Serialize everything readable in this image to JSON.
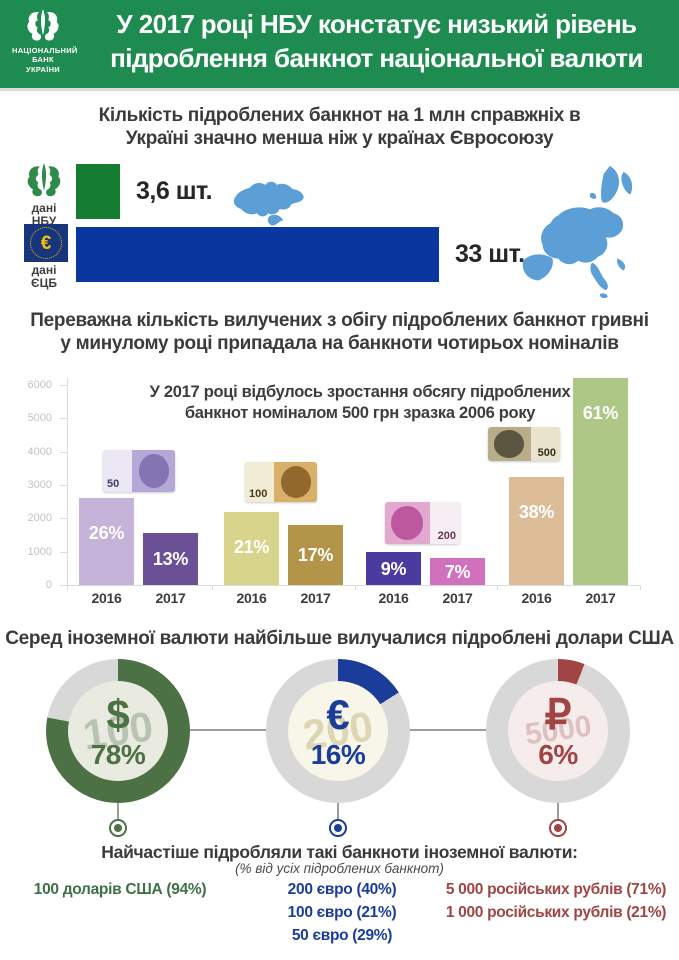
{
  "header": {
    "logo_lines": [
      "НАЦІОНАЛЬНИЙ",
      "БАНК",
      "УКРАЇНИ"
    ],
    "title_lines": [
      "У 2017 році НБУ констатує низький рівень",
      "підроблення банкнот національної валюти"
    ],
    "bg_color": "#1e8b50"
  },
  "chart_data": [
    {
      "type": "bar",
      "orientation": "horizontal",
      "title_lines": [
        "Кількість підроблених банкнот на 1 млн справжніх в",
        "Україні значно менша ніж у країнах Євросоюзу"
      ],
      "rows": [
        {
          "source_lines": [
            "дані",
            "НБУ"
          ],
          "region": "Україна",
          "value": 3.6,
          "value_label": "3,6 шт.",
          "bar_color": "#157e32",
          "map": "ukraine"
        },
        {
          "source_lines": [
            "дані",
            "ЄЦБ"
          ],
          "region": "Євросоюз",
          "value": 33,
          "value_label": "33 шт.",
          "bar_color": "#0a36a0",
          "map": "eu"
        }
      ],
      "map_color": "#5b9fd6",
      "ecb_symbol": "€"
    },
    {
      "type": "bar",
      "title_lines": [
        "Переважна кількість вилучених з обігу підроблених банкнот гривні",
        "у минулому році припадала на банкноти чотирьох номіналів"
      ],
      "annotation_lines": [
        "У 2017 році відбулось зростання обсягу підроблених",
        "банкнот номіналом 500 грн зразка 2006 року"
      ],
      "categories": [
        "2016",
        "2017"
      ],
      "yticks": [
        0,
        1000,
        2000,
        3000,
        4000,
        5000,
        6000
      ],
      "ylim": [
        0,
        6600
      ],
      "grid": false,
      "groups": [
        {
          "denomination": "50 грн",
          "bars": [
            {
              "year": "2016",
              "value": 2600,
              "percent": "26%",
              "color": "#c6b3da"
            },
            {
              "year": "2017",
              "value": 1550,
              "percent": "13%",
              "color": "#6b5096"
            }
          ],
          "note": {
            "label": "50",
            "light": "#ece7f5",
            "mid": "#b5a8d6",
            "dark": "#7e6fae",
            "num_color": "#403a68",
            "num_side": "left"
          }
        },
        {
          "denomination": "100 грн",
          "bars": [
            {
              "year": "2016",
              "value": 2200,
              "percent": "21%",
              "color": "#d9d48c"
            },
            {
              "year": "2017",
              "value": 1800,
              "percent": "17%",
              "color": "#b3954a"
            }
          ],
          "note": {
            "label": "100",
            "light": "#f2ecd6",
            "mid": "#d8b06a",
            "dark": "#8a6226",
            "num_color": "#4a3a18",
            "num_side": "left"
          }
        },
        {
          "denomination": "200 грн",
          "bars": [
            {
              "year": "2016",
              "value": 1000,
              "percent": "9%",
              "color": "#4b3ba0"
            },
            {
              "year": "2017",
              "value": 800,
              "percent": "7%",
              "color": "#d171bd"
            }
          ],
          "note": {
            "label": "200",
            "light": "#f7eef4",
            "mid": "#e3a8d0",
            "dark": "#b84f99",
            "num_color": "#5f3a55",
            "num_side": "right"
          }
        },
        {
          "denomination": "500 грн",
          "bars": [
            {
              "year": "2016",
              "value": 3250,
              "percent": "38%",
              "color": "#ddbd97"
            },
            {
              "year": "2017",
              "value": 6200,
              "percent": "61%",
              "color": "#aec787"
            }
          ],
          "note": {
            "label": "500",
            "light": "#e9e2cc",
            "mid": "#b7ad88",
            "dark": "#514d3a",
            "num_color": "#32301f",
            "num_side": "right"
          }
        }
      ]
    },
    {
      "type": "pie",
      "variant": "donut",
      "title": "Серед іноземної валюти найбільше вилучалися підроблені долари США",
      "items": [
        {
          "currency": "долари США",
          "symbol": "$",
          "percent": 78,
          "percent_label": "78%",
          "color": "#4c7144",
          "ring_rest_color": "#d8d8d8",
          "inner_bg": "#e9ebe0",
          "watermark": "100",
          "watermark_color": "rgba(100,120,95,0.35)"
        },
        {
          "currency": "євро",
          "symbol": "€",
          "percent": 16,
          "percent_label": "16%",
          "color": "#1a3d99",
          "ring_rest_color": "#d8d8d8",
          "inner_bg": "#f8f5e9",
          "watermark": "200",
          "watermark_color": "rgba(190,175,110,0.45)"
        },
        {
          "currency": "російські рублі",
          "symbol": "₽",
          "percent": 6,
          "percent_label": "6%",
          "color": "#a04444",
          "ring_rest_color": "#d8d8d8",
          "inner_bg": "#f6ecec",
          "watermark": "5000",
          "watermark_color": "rgba(170,90,90,0.3)"
        }
      ],
      "footer_title": "Найчастіше підробляли такі банкноти іноземної валюти:",
      "footer_note": "(% від усіх підроблених банкнот)",
      "breakdown": [
        {
          "color": "#3f7046",
          "lines": [
            "100 доларів США (94%)"
          ]
        },
        {
          "color": "#1a3d99",
          "lines": [
            "200 євро (40%)",
            "100 євро (21%)",
            "50 євро (29%)"
          ]
        },
        {
          "color": "#a04444",
          "lines": [
            "5 000 російських рублів (71%)",
            "1 000 російських рублів (21%)"
          ]
        }
      ]
    }
  ]
}
